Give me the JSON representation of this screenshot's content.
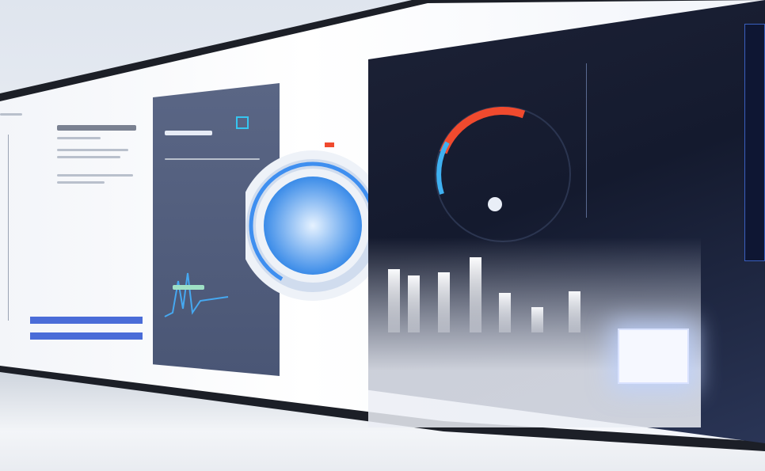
{
  "colors": {
    "accent_blue": "#3f8ff0",
    "gauge_red": "#f04a2e",
    "slate_panel": "#4f5b7a",
    "dark_panel": "#161c30",
    "progress_bar": "#4a6cd8"
  },
  "gauge": {
    "level_percent": 62
  },
  "ring": {
    "level_percent": 70
  },
  "bar_levels": [
    0.8,
    0.72,
    0.76,
    0.95,
    0.5,
    0.32,
    0.52
  ],
  "left_progress": [
    0.98,
    0.98
  ],
  "icons": [
    "chart-icon",
    "gauge-icon",
    "ring-chart-icon",
    "bar-chart-icon",
    "card-icon"
  ]
}
